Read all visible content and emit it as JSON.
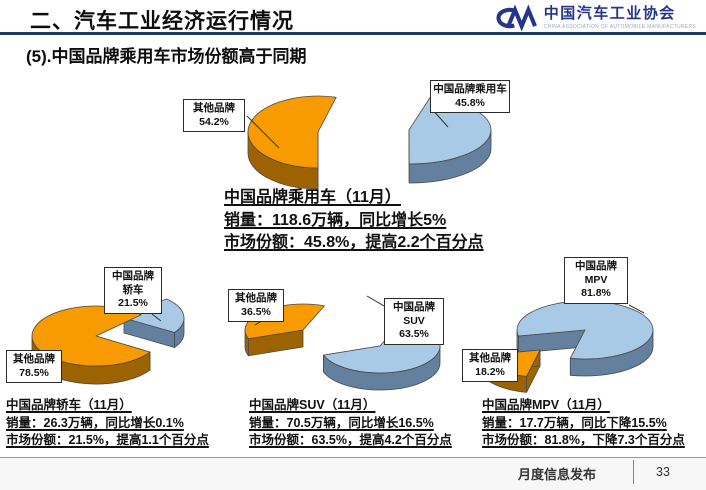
{
  "header": {
    "title": "二、汽车工业经济运行情况",
    "logo": {
      "org_cn": "中国汽车工业协会",
      "org_en": "CHINA ASSOCIATION OF AUTOMOBILE MANUFACTURERS"
    }
  },
  "subtitle": "(5).中国品牌乘用车市场份额高于同期",
  "colors": {
    "header_rule": "#1F3864",
    "logo_blue": "#26348B",
    "palette": {
      "orange": {
        "top": "#F79B00",
        "side": "#9C6300"
      },
      "blue": {
        "top": "#A9CAE7",
        "side": "#64809F"
      }
    }
  },
  "chart_data": [
    {
      "id": "passenger-car",
      "type": "pie",
      "legend_position": "callout-boxes",
      "grid": false,
      "slices": [
        {
          "label": "其他品牌",
          "value": 54.2,
          "pct_text": "54.2%",
          "color": "orange"
        },
        {
          "label": "中国品牌乘用车",
          "value": 45.8,
          "pct_text": "45.8%",
          "color": "blue"
        }
      ],
      "caption": {
        "title": "中国品牌乘用车（11月）",
        "line1": "销量：118.6万辆，同比增长5%",
        "line2": "市场份额：45.8%，提高2.2个百分点"
      }
    },
    {
      "id": "sedan",
      "type": "pie",
      "legend_position": "callout-boxes",
      "grid": false,
      "slices": [
        {
          "label": "其他品牌",
          "value": 78.5,
          "pct_text": "78.5%",
          "color": "orange"
        },
        {
          "label": "中国品牌轿车",
          "value": 21.5,
          "pct_text": "21.5%",
          "color": "blue"
        }
      ],
      "caption": {
        "title": "中国品牌轿车（11月）",
        "line1": "销量：26.3万辆，同比增长0.1%",
        "line2": "市场份额：21.5%，提高1.1个百分点"
      }
    },
    {
      "id": "suv",
      "type": "pie",
      "legend_position": "callout-boxes",
      "grid": false,
      "slices": [
        {
          "label": "其他品牌",
          "value": 36.5,
          "pct_text": "36.5%",
          "color": "orange"
        },
        {
          "label": "中国品牌SUV",
          "value": 63.5,
          "pct_text": "63.5%",
          "color": "blue"
        }
      ],
      "caption": {
        "title": "中国品牌SUV（11月）",
        "line1": "销量：70.5万辆，同比增长16.5%",
        "line2": "市场份额：63.5%，提高4.2个百分点"
      }
    },
    {
      "id": "mpv",
      "type": "pie",
      "legend_position": "callout-boxes",
      "grid": false,
      "slices": [
        {
          "label": "其他品牌",
          "value": 18.2,
          "pct_text": "18.2%",
          "color": "orange"
        },
        {
          "label": "中国品牌MPV",
          "value": 81.8,
          "pct_text": "81.8%",
          "color": "blue"
        }
      ],
      "caption": {
        "title": "中国品牌MPV（11月）",
        "line1": "销量：17.7万辆，同比下降15.5%",
        "line2": "市场份额：81.8%，下降7.3个百分点"
      }
    }
  ],
  "footer": {
    "label": "月度信息发布",
    "page": "33"
  }
}
